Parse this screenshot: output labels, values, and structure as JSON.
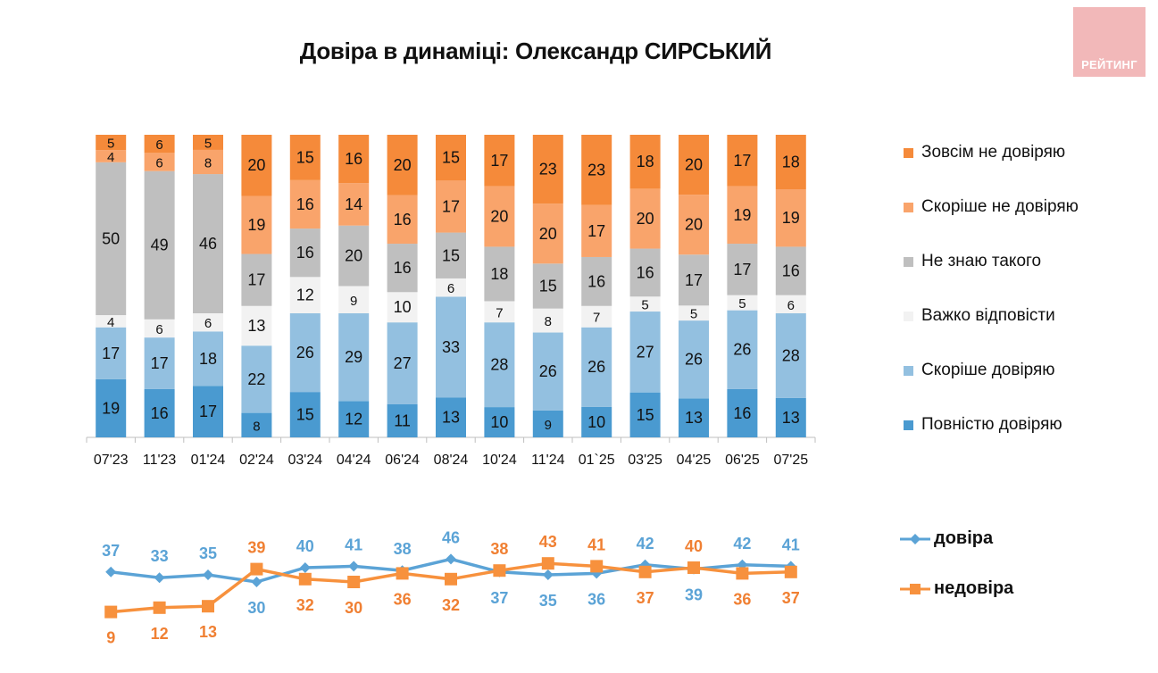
{
  "title": "Довіра в динаміці: Олександр СИРСЬКИЙ",
  "logo_text": "РЕЙТИНГ",
  "colors": {
    "full_distrust": "#f58a3a",
    "rather_distrust": "#f9a46b",
    "dont_know": "#bfbfbf",
    "hard_to_say": "#f2f2f2",
    "rather_trust": "#93c0e0",
    "full_trust": "#4a9ad0",
    "trust_line": "#5ba3d6",
    "distrust_line": "#f7913d",
    "trust_label": "#5ba3d6",
    "distrust_label": "#f08033",
    "logo_bg": "#f2b8b9"
  },
  "chart_data": [
    {
      "type": "bar",
      "stacked": true,
      "title": "Довіра в динаміці: Олександр СИРСЬКИЙ",
      "xlabel": "",
      "ylabel": "",
      "ylim": [
        0,
        100
      ],
      "grid": false,
      "legend_position": "right",
      "categories": [
        "07'23",
        "11'23",
        "01'24",
        "02'24",
        "03'24",
        "04'24",
        "06'24",
        "08'24",
        "10'24",
        "11'24",
        "01`25",
        "03'25",
        "04'25",
        "06'25",
        "07'25"
      ],
      "series": [
        {
          "key": "full_trust",
          "name": "Повністю довіряю",
          "values": [
            19,
            16,
            17,
            8,
            15,
            12,
            11,
            13,
            10,
            9,
            10,
            15,
            13,
            16,
            13
          ]
        },
        {
          "key": "rather_trust",
          "name": "Скоріше довіряю",
          "values": [
            17,
            17,
            18,
            22,
            26,
            29,
            27,
            33,
            28,
            26,
            26,
            27,
            26,
            26,
            28
          ]
        },
        {
          "key": "hard_to_say",
          "name": "Важко відповісти",
          "values": [
            4,
            6,
            6,
            13,
            12,
            9,
            10,
            6,
            7,
            8,
            7,
            5,
            5,
            5,
            6
          ]
        },
        {
          "key": "dont_know",
          "name": "Не знаю такого",
          "values": [
            50,
            49,
            46,
            17,
            16,
            20,
            16,
            15,
            18,
            15,
            16,
            16,
            17,
            17,
            16
          ]
        },
        {
          "key": "rather_distrust",
          "name": "Скоріше не довіряю",
          "values": [
            4,
            6,
            8,
            19,
            16,
            14,
            16,
            17,
            20,
            20,
            17,
            20,
            20,
            19,
            19
          ]
        },
        {
          "key": "full_distrust",
          "name": "Зовсім не довіряю",
          "values": [
            5,
            6,
            5,
            20,
            15,
            16,
            20,
            15,
            17,
            23,
            23,
            18,
            20,
            17,
            18
          ]
        }
      ],
      "legend_order": [
        "Зовсім не довіряю",
        "Скоріше не довіряю",
        "Не знаю такого",
        "Важко відповісти",
        "Скоріше довіряю",
        "Повністю довіряю"
      ]
    },
    {
      "type": "line",
      "title": "",
      "xlabel": "",
      "ylabel": "",
      "grid": false,
      "legend_position": "right",
      "categories": [
        "07'23",
        "11'23",
        "01'24",
        "02'24",
        "03'24",
        "04'24",
        "06'24",
        "08'24",
        "10'24",
        "11'24",
        "01`25",
        "03'25",
        "04'25",
        "06'25",
        "07'25"
      ],
      "series": [
        {
          "key": "trust",
          "name": "довіра",
          "marker": "diamond",
          "values": [
            37,
            33,
            35,
            30,
            40,
            41,
            38,
            46,
            37,
            35,
            36,
            42,
            39,
            42,
            41
          ]
        },
        {
          "key": "distrust",
          "name": "недовіра",
          "marker": "square",
          "values": [
            9,
            12,
            13,
            39,
            32,
            30,
            36,
            32,
            38,
            43,
            41,
            37,
            40,
            36,
            37
          ]
        }
      ]
    }
  ]
}
